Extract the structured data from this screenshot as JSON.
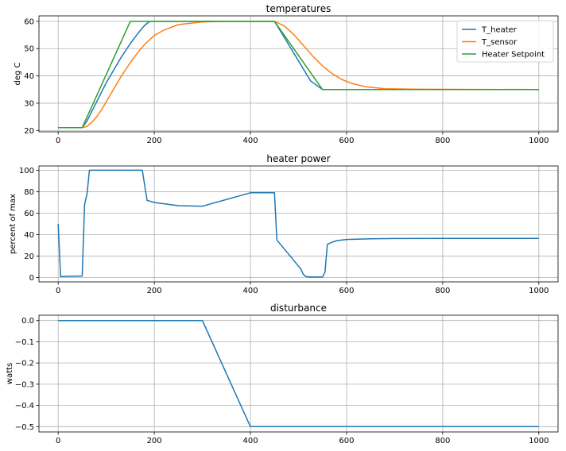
{
  "colors": {
    "blue": "#1f77b4",
    "orange": "#ff7f0e",
    "green": "#2ca02c"
  },
  "chart_data": [
    {
      "type": "line",
      "title": "temperatures",
      "xlabel": "",
      "ylabel": "deg C",
      "xlim": [
        -40,
        1040
      ],
      "ylim": [
        19.5,
        62
      ],
      "xticks": [
        0,
        200,
        400,
        600,
        800,
        1000
      ],
      "yticks": [
        20,
        30,
        40,
        50,
        60
      ],
      "grid": true,
      "legend_position": "top-right",
      "series": [
        {
          "name": "T_heater",
          "color": "#1f77b4",
          "x": [
            0,
            50,
            60,
            70,
            80,
            90,
            100,
            110,
            120,
            130,
            140,
            150,
            160,
            170,
            180,
            190,
            200,
            250,
            300,
            400,
            450,
            475,
            500,
            525,
            550,
            575,
            600,
            700,
            800,
            900,
            1000
          ],
          "y": [
            21,
            21,
            23.5,
            27,
            30.5,
            34,
            37.5,
            40.5,
            43.5,
            46.5,
            49.2,
            51.8,
            54.2,
            56.5,
            58.5,
            60,
            60,
            60,
            60,
            60,
            60,
            52.8,
            45.5,
            38.2,
            35,
            35,
            35,
            35,
            35,
            35,
            35
          ]
        },
        {
          "name": "T_sensor",
          "color": "#ff7f0e",
          "x": [
            0,
            50,
            60,
            70,
            80,
            90,
            100,
            110,
            120,
            130,
            140,
            150,
            160,
            170,
            180,
            190,
            200,
            220,
            250,
            300,
            350,
            400,
            450,
            470,
            490,
            510,
            530,
            550,
            570,
            590,
            610,
            640,
            680,
            750,
            1000
          ],
          "y": [
            21,
            21,
            21.5,
            23,
            25,
            27.5,
            30.5,
            33.5,
            36.5,
            39.5,
            42.2,
            44.8,
            47.2,
            49.5,
            51.5,
            53.2,
            54.8,
            56.8,
            58.8,
            59.8,
            60,
            60,
            60,
            58.4,
            55.2,
            51.2,
            47.2,
            43.7,
            40.8,
            38.7,
            37.3,
            36,
            35.3,
            35.1,
            35
          ]
        },
        {
          "name": "Heater Setpoint",
          "color": "#2ca02c",
          "x": [
            0,
            50,
            150,
            450,
            550,
            1000
          ],
          "y": [
            21,
            21,
            60,
            60,
            35,
            35
          ]
        }
      ]
    },
    {
      "type": "line",
      "title": "heater power",
      "xlabel": "",
      "ylabel": "percent of max",
      "xlim": [
        -40,
        1040
      ],
      "ylim": [
        -4,
        104
      ],
      "xticks": [
        0,
        200,
        400,
        600,
        800,
        1000
      ],
      "yticks": [
        0,
        20,
        40,
        60,
        80,
        100
      ],
      "grid": true,
      "series": [
        {
          "name": "",
          "color": "#1f77b4",
          "x": [
            0,
            5,
            50,
            55,
            60,
            65,
            175,
            185,
            200,
            250,
            300,
            400,
            450,
            455,
            505,
            510,
            515,
            525,
            550,
            555,
            560,
            570,
            580,
            600,
            650,
            700,
            800,
            1000
          ],
          "y": [
            50,
            1,
            1.5,
            68,
            78,
            100,
            100,
            72,
            70,
            67,
            66.5,
            79,
            79,
            35,
            8,
            3,
            1,
            0.5,
            0.5,
            5,
            31,
            33,
            34.5,
            35.5,
            36.2,
            36.4,
            36.5,
            36.5
          ]
        }
      ]
    },
    {
      "type": "line",
      "title": "disturbance",
      "xlabel": "",
      "ylabel": "watts",
      "xlim": [
        -40,
        1040
      ],
      "ylim": [
        -0.525,
        0.025
      ],
      "xticks": [
        0,
        200,
        400,
        600,
        800,
        1000
      ],
      "yticks": [
        0.0,
        -0.1,
        -0.2,
        -0.3,
        -0.4,
        -0.5
      ],
      "ytick_labels": [
        "0.0",
        "−0.1",
        "−0.2",
        "−0.3",
        "−0.4",
        "−0.5"
      ],
      "grid": true,
      "series": [
        {
          "name": "",
          "color": "#1f77b4",
          "x": [
            0,
            300,
            400,
            1000
          ],
          "y": [
            0,
            0,
            -0.5,
            -0.5
          ]
        }
      ]
    }
  ]
}
